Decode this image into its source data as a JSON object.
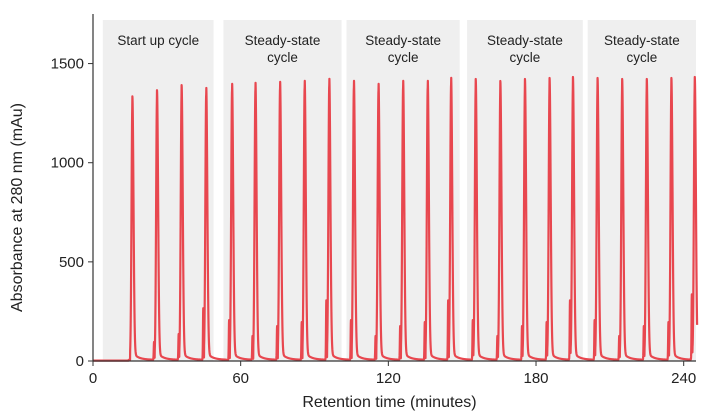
{
  "chart_data": {
    "type": "line",
    "title": "",
    "xlabel": "Retention time (minutes)",
    "ylabel": "Absorbance at 280 nm (mAu)",
    "xlim": [
      0,
      245
    ],
    "ylim": [
      0,
      1750
    ],
    "x_ticks": [
      0,
      60,
      120,
      180,
      240
    ],
    "y_ticks": [
      0,
      500,
      1000,
      1500
    ],
    "grid": false,
    "line_color": "#e8474f",
    "region_color": "#efefef",
    "regions": [
      {
        "label": [
          "Start up cycle"
        ],
        "x_start": 4,
        "x_end": 49
      },
      {
        "label": [
          "Steady-state",
          "cycle"
        ],
        "x_start": 53,
        "x_end": 101
      },
      {
        "label": [
          "Steady-state",
          "cycle"
        ],
        "x_start": 103,
        "x_end": 149
      },
      {
        "label": [
          "Steady-state",
          "cycle"
        ],
        "x_start": 152,
        "x_end": 199
      },
      {
        "label": [
          "Steady-state",
          "cycle"
        ],
        "x_start": 201,
        "x_end": 247
      }
    ],
    "series": [
      {
        "peaks": [
          {
            "x": 16,
            "y": 1290,
            "shoulder": 0
          },
          {
            "x": 26,
            "y": 1320,
            "shoulder": 90
          },
          {
            "x": 36,
            "y": 1345,
            "shoulder": 130
          },
          {
            "x": 46,
            "y": 1340,
            "shoulder": 260
          },
          {
            "x": 56.5,
            "y": 1360,
            "shoulder": 200
          },
          {
            "x": 66,
            "y": 1365,
            "shoulder": 120
          },
          {
            "x": 76,
            "y": 1370,
            "shoulder": 170
          },
          {
            "x": 86,
            "y": 1375,
            "shoulder": 190
          },
          {
            "x": 96,
            "y": 1385,
            "shoulder": 300
          },
          {
            "x": 106,
            "y": 1375,
            "shoulder": 200
          },
          {
            "x": 116,
            "y": 1360,
            "shoulder": 120
          },
          {
            "x": 126,
            "y": 1375,
            "shoulder": 170
          },
          {
            "x": 136,
            "y": 1375,
            "shoulder": 190
          },
          {
            "x": 145.5,
            "y": 1390,
            "shoulder": 300
          },
          {
            "x": 155.5,
            "y": 1375,
            "shoulder": 200
          },
          {
            "x": 165.5,
            "y": 1365,
            "shoulder": 120
          },
          {
            "x": 175.5,
            "y": 1375,
            "shoulder": 170
          },
          {
            "x": 185.5,
            "y": 1380,
            "shoulder": 190
          },
          {
            "x": 195,
            "y": 1385,
            "shoulder": 300
          },
          {
            "x": 205,
            "y": 1380,
            "shoulder": 200
          },
          {
            "x": 215,
            "y": 1375,
            "shoulder": 120
          },
          {
            "x": 225,
            "y": 1375,
            "shoulder": 170
          },
          {
            "x": 235,
            "y": 1380,
            "shoulder": 190
          },
          {
            "x": 244.5,
            "y": 1385,
            "shoulder": 330
          }
        ]
      }
    ]
  }
}
